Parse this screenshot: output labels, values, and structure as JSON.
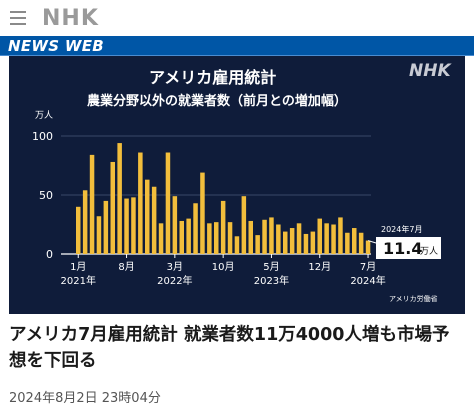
{
  "header": {
    "logo": "NHK",
    "section_title": "NEWS WEB"
  },
  "article": {
    "headline": "アメリカ7月雇用統計 就業者数11万4000人増も市場予想を下回る",
    "timestamp": "2024年8月2日 23時04分"
  },
  "chart_data": {
    "type": "bar",
    "title": "アメリカ雇用統計",
    "subtitle": "農業分野以外の就業者数（前月との増加幅）",
    "ylabel": "万人",
    "ylim": [
      0,
      100
    ],
    "yticks": [
      "0",
      "50",
      "100"
    ],
    "watermark": "NHK",
    "source": "アメリカ労働省",
    "bar_color": "#f2be3c",
    "x_tick_labels": [
      {
        "index": 0,
        "month": "1月",
        "year": "2021年"
      },
      {
        "index": 7,
        "month": "8月"
      },
      {
        "index": 14,
        "month": "3月",
        "year": "2022年"
      },
      {
        "index": 21,
        "month": "10月"
      },
      {
        "index": 28,
        "month": "5月",
        "year": "2023年"
      },
      {
        "index": 35,
        "month": "12月"
      },
      {
        "index": 42,
        "month": "7月",
        "year": "2024年"
      }
    ],
    "categories": [
      "2021-01",
      "2021-02",
      "2021-03",
      "2021-04",
      "2021-05",
      "2021-06",
      "2021-07",
      "2021-08",
      "2021-09",
      "2021-10",
      "2021-11",
      "2021-12",
      "2022-01",
      "2022-02",
      "2022-03",
      "2022-04",
      "2022-05",
      "2022-06",
      "2022-07",
      "2022-08",
      "2022-09",
      "2022-10",
      "2022-11",
      "2022-12",
      "2023-01",
      "2023-02",
      "2023-03",
      "2023-04",
      "2023-05",
      "2023-06",
      "2023-07",
      "2023-08",
      "2023-09",
      "2023-10",
      "2023-11",
      "2023-12",
      "2024-01",
      "2024-02",
      "2024-03",
      "2024-04",
      "2024-05",
      "2024-06",
      "2024-07"
    ],
    "values": [
      40,
      54,
      84,
      32,
      45,
      78,
      94,
      47,
      48,
      86,
      63,
      57,
      26,
      86,
      49,
      28,
      30,
      43,
      69,
      26,
      27,
      45,
      27,
      15,
      49,
      28,
      16,
      29,
      31,
      25,
      19,
      22,
      26,
      17,
      19,
      30,
      26,
      25,
      31,
      18,
      22,
      18,
      11.4
    ],
    "annotation": {
      "label": "2024年7月",
      "value": "11.4",
      "unit": "万人"
    }
  }
}
